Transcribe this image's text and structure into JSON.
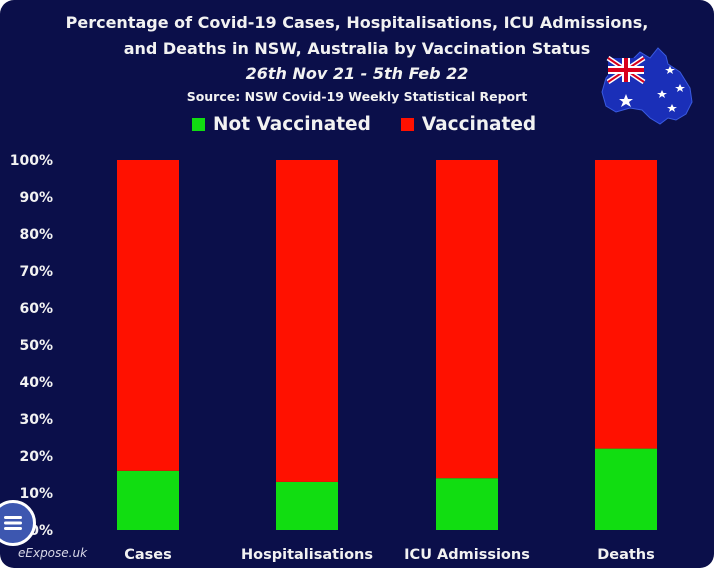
{
  "chart_data": {
    "type": "bar",
    "stacked": true,
    "title": "Percentage of Covid-19 Cases, Hospitalisations, ICU Admissions,",
    "title_line2": "and Deaths in NSW, Australia by Vaccination Status",
    "subtitle": "26th Nov 21 - 5th Feb 22",
    "source": "Source: NSW Covid-19 Weekly Statistical Report",
    "categories": [
      "Cases",
      "Hospitalisations",
      "ICU Admissions",
      "Deaths"
    ],
    "series": [
      {
        "name": "Not Vaccinated",
        "color": "#11dd11",
        "values": [
          16,
          13,
          14,
          22
        ]
      },
      {
        "name": "Vaccinated",
        "color": "#ff1100",
        "values": [
          84,
          87,
          86,
          78
        ]
      }
    ],
    "ylim": [
      0,
      100
    ],
    "y_ticks": [
      "0%",
      "10%",
      "20%",
      "30%",
      "40%",
      "50%",
      "60%",
      "70%",
      "80%",
      "90%",
      "100%"
    ],
    "xlabel": "",
    "ylabel": "",
    "grid": false,
    "legend_position": "top"
  },
  "watermark": "eExpose.uk",
  "menu_icon": "menu-lines-icon",
  "flag_icon": "australia-flag-map-icon",
  "background_color": "#0b0f4a"
}
